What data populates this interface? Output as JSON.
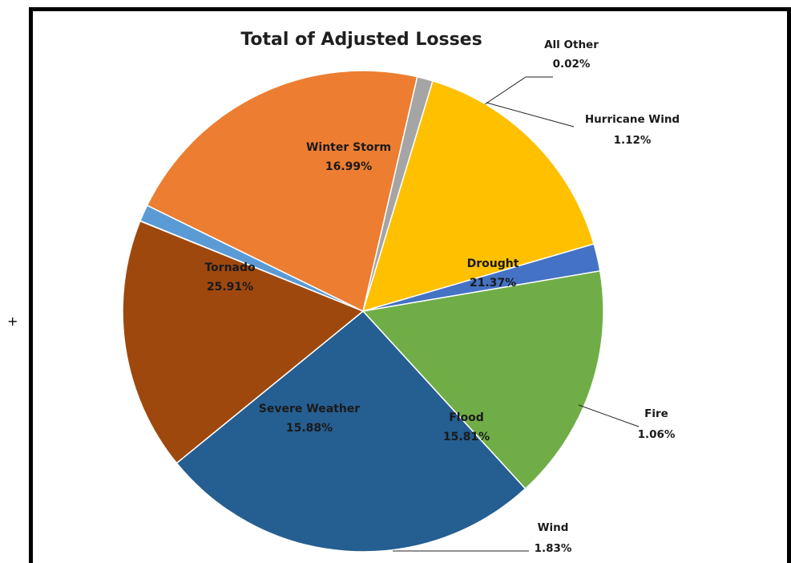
{
  "decor": {
    "plus": "+"
  },
  "chart_data": {
    "type": "pie",
    "title": "Total of Adjusted Losses",
    "slices": [
      {
        "name": "All Other",
        "value": 0.02,
        "label": "0.02%",
        "color": "#5b9bd5",
        "placement": "outside"
      },
      {
        "name": "Hurricane Wind",
        "value": 1.12,
        "label": "1.12%",
        "color": "#5b9bd5",
        "placement": "outside"
      },
      {
        "name": "Drought",
        "value": 21.37,
        "label": "21.37%",
        "color": "#ed7d31",
        "placement": "inside"
      },
      {
        "name": "Fire",
        "value": 1.06,
        "label": "1.06%",
        "color": "#a5a5a5",
        "placement": "outside"
      },
      {
        "name": "Flood",
        "value": 15.81,
        "label": "15.81%",
        "color": "#ffc000",
        "placement": "inside"
      },
      {
        "name": "Wind",
        "value": 1.83,
        "label": "1.83%",
        "color": "#4472c4",
        "placement": "outside"
      },
      {
        "name": "Severe Weather",
        "value": 15.88,
        "label": "15.88%",
        "color": "#70ad47",
        "placement": "inside"
      },
      {
        "name": "Tornado",
        "value": 25.91,
        "label": "25.91%",
        "color": "#255e91",
        "placement": "inside"
      },
      {
        "name": "Winter Storm",
        "value": 16.99,
        "label": "16.99%",
        "color": "#9e480e",
        "placement": "inside"
      }
    ]
  }
}
